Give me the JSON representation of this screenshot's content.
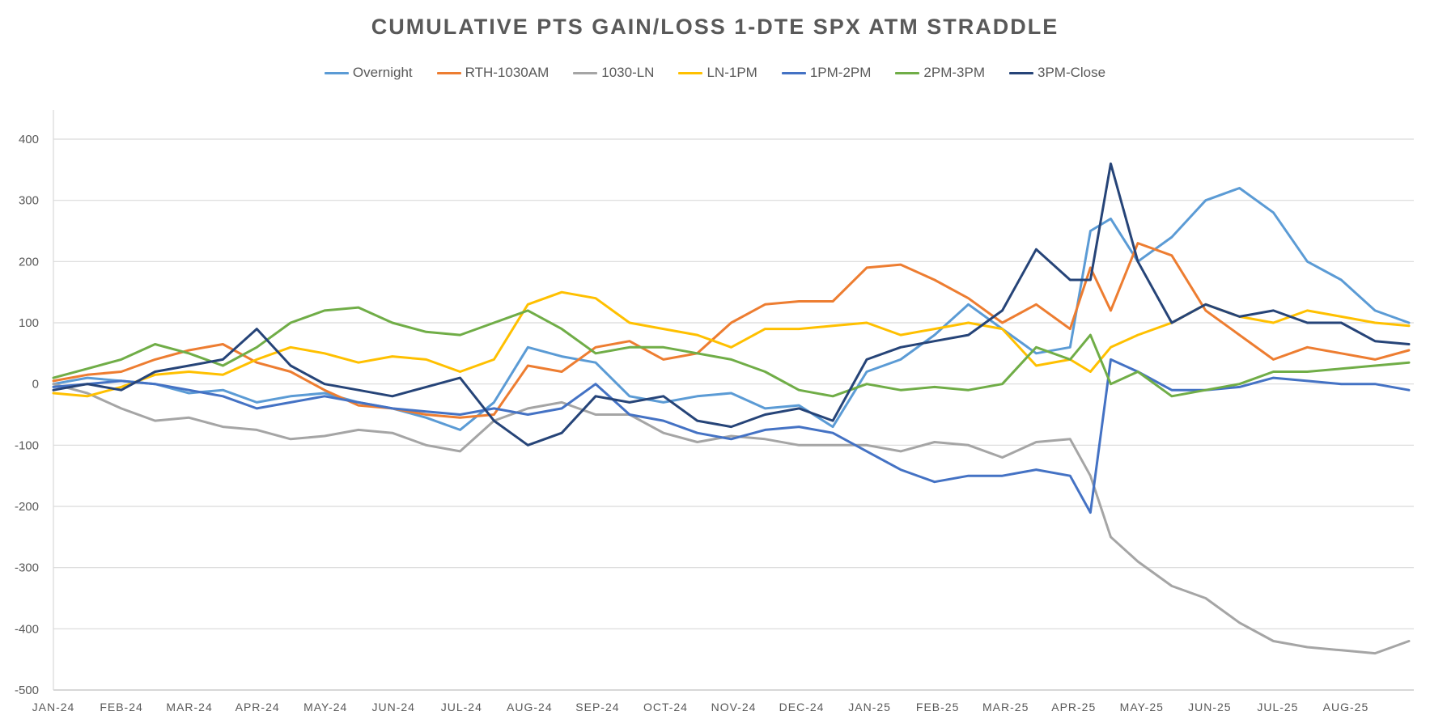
{
  "chart_data": {
    "type": "line",
    "title": "CUMULATIVE PTS GAIN/LOSS 1-DTE SPX ATM STRADDLE",
    "xlabel": "",
    "ylabel": "",
    "ylim": [
      -500,
      400
    ],
    "yticks": [
      400,
      300,
      200,
      100,
      0,
      -100,
      -200,
      -300,
      -400,
      -500
    ],
    "xtick_labels": [
      "JAN-24",
      "FEB-24",
      "MAR-24",
      "APR-24",
      "MAY-24",
      "JUN-24",
      "JUL-24",
      "AUG-24",
      "SEP-24",
      "OCT-24",
      "NOV-24",
      "DEC-24",
      "JAN-25",
      "FEB-25",
      "MAR-25",
      "APR-25",
      "MAY-25",
      "JUN-25",
      "JUL-25",
      "AUG-25"
    ],
    "grid": "horizontal",
    "legend_position": "top",
    "x": [
      0,
      0.5,
      1,
      1.5,
      2,
      2.5,
      3,
      3.5,
      4,
      4.5,
      5,
      5.5,
      6,
      6.5,
      7,
      7.5,
      8,
      8.5,
      9,
      9.5,
      10,
      10.5,
      11,
      11.5,
      12,
      12.5,
      13,
      13.5,
      14,
      14.5,
      15,
      15.3,
      15.6,
      16,
      16.5,
      17,
      17.5,
      18,
      18.5,
      19,
      19.5,
      20
    ],
    "series": [
      {
        "name": "Overnight",
        "color": "#5B9BD5",
        "values": [
          0,
          10,
          5,
          0,
          -15,
          -10,
          -30,
          -20,
          -15,
          -30,
          -40,
          -55,
          -75,
          -30,
          60,
          45,
          35,
          -20,
          -30,
          -20,
          -15,
          -40,
          -35,
          -70,
          20,
          40,
          80,
          130,
          90,
          50,
          60,
          250,
          270,
          200,
          240,
          300,
          320,
          280,
          200,
          170,
          120,
          100
        ]
      },
      {
        "name": "RTH-1030AM",
        "color": "#ED7D31",
        "values": [
          5,
          15,
          20,
          40,
          55,
          65,
          35,
          20,
          -10,
          -35,
          -40,
          -50,
          -55,
          -50,
          30,
          20,
          60,
          70,
          40,
          50,
          100,
          130,
          135,
          135,
          190,
          195,
          170,
          140,
          100,
          130,
          90,
          190,
          120,
          230,
          210,
          120,
          80,
          40,
          60,
          50,
          40,
          55
        ]
      },
      {
        "name": "1030-LN",
        "color": "#A5A5A5",
        "values": [
          0,
          -15,
          -40,
          -60,
          -55,
          -70,
          -75,
          -90,
          -85,
          -75,
          -80,
          -100,
          -110,
          -60,
          -40,
          -30,
          -50,
          -50,
          -80,
          -95,
          -85,
          -90,
          -100,
          -100,
          -100,
          -110,
          -95,
          -100,
          -120,
          -95,
          -90,
          -150,
          -250,
          -290,
          -330,
          -350,
          -390,
          -420,
          -430,
          -435,
          -440,
          -420
        ]
      },
      {
        "name": "LN-1PM",
        "color": "#FFC000",
        "values": [
          -15,
          -20,
          -5,
          15,
          20,
          15,
          40,
          60,
          50,
          35,
          45,
          40,
          20,
          40,
          130,
          150,
          140,
          100,
          90,
          80,
          60,
          90,
          90,
          95,
          100,
          80,
          90,
          100,
          90,
          30,
          40,
          20,
          60,
          80,
          100,
          130,
          110,
          100,
          120,
          110,
          100,
          95
        ]
      },
      {
        "name": "1PM-2PM",
        "color": "#4472C4",
        "values": [
          -5,
          0,
          5,
          0,
          -10,
          -20,
          -40,
          -30,
          -20,
          -30,
          -40,
          -45,
          -50,
          -40,
          -50,
          -40,
          0,
          -50,
          -60,
          -80,
          -90,
          -75,
          -70,
          -80,
          -110,
          -140,
          -160,
          -150,
          -150,
          -140,
          -150,
          -210,
          40,
          20,
          -10,
          -10,
          -5,
          10,
          5,
          0,
          0,
          -10
        ]
      },
      {
        "name": "2PM-3PM",
        "color": "#70AD47",
        "values": [
          10,
          25,
          40,
          65,
          50,
          30,
          60,
          100,
          120,
          125,
          100,
          85,
          80,
          100,
          120,
          90,
          50,
          60,
          60,
          50,
          40,
          20,
          -10,
          -20,
          0,
          -10,
          -5,
          -10,
          0,
          60,
          40,
          80,
          0,
          20,
          -20,
          -10,
          0,
          20,
          20,
          25,
          30,
          35
        ]
      },
      {
        "name": "3PM-Close",
        "color": "#264478",
        "values": [
          -10,
          0,
          -10,
          20,
          30,
          40,
          90,
          30,
          0,
          -10,
          -20,
          -5,
          10,
          -60,
          -100,
          -80,
          -20,
          -30,
          -20,
          -60,
          -70,
          -50,
          -40,
          -60,
          40,
          60,
          70,
          80,
          120,
          220,
          170,
          170,
          360,
          200,
          100,
          130,
          110,
          120,
          100,
          100,
          70,
          65
        ]
      }
    ]
  }
}
